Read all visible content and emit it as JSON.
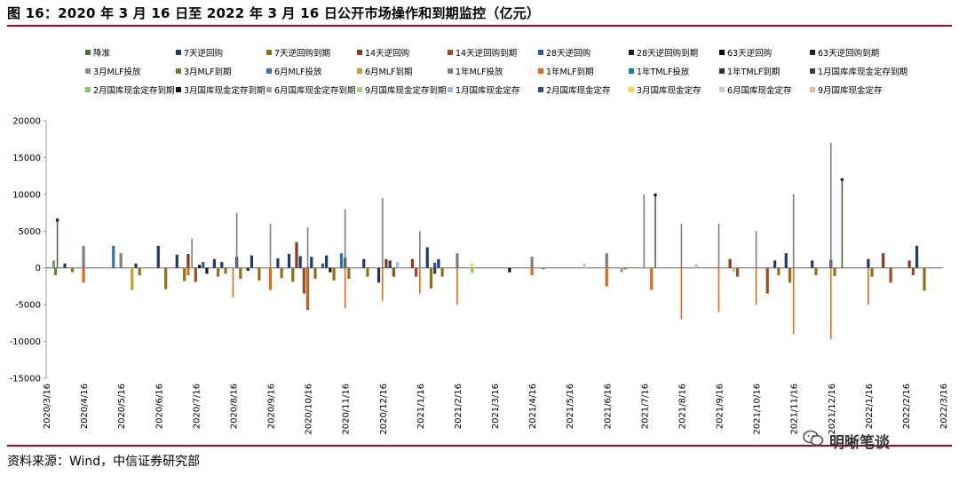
{
  "figure": {
    "title": "图 16：2020 年 3 月 16 日至 2022 年 3 月 16 日公开市场操作和到期监控（亿元）",
    "source": "资料来源：Wind，中信证券研究部",
    "watermark": "明晰笔谈",
    "watermark_icon": "wechat-icon",
    "accent_color": "#b3001b"
  },
  "chart_data": {
    "type": "bar",
    "title": "2020 年 3 月 16 日至 2022 年 3 月 16 日公开市场操作和到期监控（亿元）",
    "xlabel": "",
    "ylabel": "亿元",
    "ylim": [
      -15000,
      20000
    ],
    "yticks": [
      20000,
      15000,
      10000,
      5000,
      0,
      -5000,
      -10000,
      -15000
    ],
    "grid": false,
    "legend_position": "top",
    "x_tick_labels": [
      "2020/3/16",
      "2020/4/16",
      "2020/5/16",
      "2020/6/16",
      "2020/7/16",
      "2020/8/16",
      "2020/9/16",
      "2020/10/16",
      "2020/11/16",
      "2020/12/16",
      "2021/1/16",
      "2021/2/16",
      "2021/3/16",
      "2021/4/16",
      "2021/5/16",
      "2021/6/16",
      "2021/7/16",
      "2021/8/16",
      "2021/9/16",
      "2021/10/16",
      "2021/11/16",
      "2021/12/16",
      "2022/1/16",
      "2022/2/16",
      "2022/3/16"
    ],
    "series": [
      {
        "name": "降准",
        "color": "#4a6b3a",
        "points": [
          [
            0.3,
            6500
          ],
          [
            16.3,
            9900
          ],
          [
            21.3,
            12000
          ]
        ]
      },
      {
        "name": "7天逆回购",
        "color": "#1f3a6e",
        "points": [
          [
            0.5,
            600
          ],
          [
            2.4,
            600
          ],
          [
            3.0,
            3000
          ],
          [
            3.5,
            1800
          ],
          [
            4.5,
            1200
          ],
          [
            4.7,
            800
          ],
          [
            5.1,
            1500
          ],
          [
            5.5,
            1700
          ],
          [
            6.2,
            1300
          ],
          [
            6.5,
            1900
          ],
          [
            6.8,
            1600
          ],
          [
            7.1,
            1500
          ],
          [
            7.5,
            1700
          ],
          [
            8.0,
            1400
          ],
          [
            8.5,
            1200
          ],
          [
            9.2,
            1000
          ],
          [
            10.2,
            2800
          ],
          [
            10.5,
            1200
          ],
          [
            19.5,
            1000
          ],
          [
            19.8,
            2000
          ],
          [
            20.5,
            1000
          ],
          [
            21.0,
            1100
          ],
          [
            22.0,
            1200
          ],
          [
            23.3,
            3000
          ]
        ]
      },
      {
        "name": "7天逆回购到期",
        "color": "#8f7312",
        "points": [
          [
            0.7,
            -600
          ],
          [
            2.5,
            -1000
          ],
          [
            3.2,
            -2900
          ],
          [
            3.7,
            -1800
          ],
          [
            4.6,
            -1200
          ],
          [
            4.8,
            -800
          ],
          [
            5.2,
            -1500
          ],
          [
            5.7,
            -1700
          ],
          [
            6.3,
            -1400
          ],
          [
            6.6,
            -1900
          ],
          [
            6.9,
            -1600
          ],
          [
            7.2,
            -1500
          ],
          [
            7.7,
            -1700
          ],
          [
            8.1,
            -1500
          ],
          [
            8.6,
            -1200
          ],
          [
            9.3,
            -1000
          ],
          [
            10.3,
            -2800
          ],
          [
            10.6,
            -1200
          ],
          [
            13.3,
            -200
          ],
          [
            15.5,
            -200
          ],
          [
            19.6,
            -1000
          ],
          [
            19.9,
            -2000
          ],
          [
            20.6,
            -1000
          ],
          [
            21.1,
            -1100
          ],
          [
            22.1,
            -1200
          ],
          [
            23.5,
            -3100
          ]
        ]
      },
      {
        "name": "14天逆回购",
        "color": "#8a3a1a",
        "points": [
          [
            3.8,
            1900
          ],
          [
            6.7,
            3500
          ],
          [
            9.1,
            1200
          ],
          [
            9.8,
            1200
          ],
          [
            18.3,
            1200
          ],
          [
            22.4,
            2000
          ],
          [
            23.1,
            1000
          ]
        ]
      },
      {
        "name": "14天逆回购到期",
        "color": "#a04a22",
        "points": [
          [
            4.0,
            -1900
          ],
          [
            6.9,
            -3500
          ],
          [
            7.0,
            -5700
          ],
          [
            9.3,
            -1200
          ],
          [
            9.9,
            -1200
          ],
          [
            18.5,
            -1200
          ],
          [
            19.3,
            -3500
          ],
          [
            22.6,
            -2000
          ],
          [
            23.2,
            -1000
          ]
        ]
      },
      {
        "name": "28天逆回购",
        "color": "#2c5a9a",
        "points": [
          [
            4.2,
            800
          ],
          [
            7.4,
            600
          ]
        ]
      },
      {
        "name": "28天逆回购到期",
        "color": "#1a1a1a",
        "points": [
          [
            4.3,
            -800
          ],
          [
            7.6,
            -600
          ]
        ]
      },
      {
        "name": "63天逆回购",
        "color": "#000000",
        "points": [
          [
            4.1,
            400
          ]
        ]
      },
      {
        "name": "63天逆回购到期",
        "color": "#222222",
        "points": [
          [
            5.4,
            -400
          ]
        ]
      },
      {
        "name": "3月MLF投放",
        "color": "#8c8c8c",
        "points": [
          [
            0.2,
            1000
          ]
        ]
      },
      {
        "name": "3月MLF到期",
        "color": "#5a8a2e",
        "points": [
          [
            0.25,
            -1000
          ]
        ]
      },
      {
        "name": "6月MLF投放",
        "color": "#3d6fb0",
        "points": [
          [
            1.8,
            3000
          ]
        ]
      },
      {
        "name": "6月MLF到期",
        "color": "#c8a01e",
        "points": [
          [
            2.3,
            -3000
          ]
        ]
      },
      {
        "name": "1年MLF投放",
        "color": "#7f7f7f",
        "points": [
          [
            1.0,
            3000
          ],
          [
            2.0,
            2000
          ],
          [
            3.9,
            4000
          ],
          [
            5.1,
            7500
          ],
          [
            6.0,
            6000
          ],
          [
            7.0,
            5500
          ],
          [
            8.0,
            8000
          ],
          [
            9.0,
            9500
          ],
          [
            10.0,
            5000
          ],
          [
            11.0,
            2000
          ],
          [
            13.0,
            1500
          ],
          [
            15.0,
            2000
          ],
          [
            16.0,
            10000
          ],
          [
            17.0,
            6000
          ],
          [
            18.0,
            6000
          ],
          [
            19.0,
            5000
          ],
          [
            20.0,
            10000
          ],
          [
            21.0,
            17000
          ]
        ]
      },
      {
        "name": "1年MLF到期",
        "color": "#e06a1a",
        "points": [
          [
            1.0,
            -2000
          ],
          [
            3.8,
            -1000
          ],
          [
            5.0,
            -4000
          ],
          [
            6.0,
            -3000
          ],
          [
            7.0,
            -5500
          ],
          [
            8.0,
            -5500
          ],
          [
            9.0,
            -4500
          ],
          [
            10.0,
            -3500
          ],
          [
            11.0,
            -5000
          ],
          [
            13.0,
            -1000
          ],
          [
            15.0,
            -2500
          ],
          [
            16.2,
            -3000
          ],
          [
            17.0,
            -7000
          ],
          [
            18.0,
            -6000
          ],
          [
            19.0,
            -5000
          ],
          [
            20.0,
            -9000
          ],
          [
            21.0,
            -9700
          ],
          [
            22.0,
            -5000
          ]
        ]
      },
      {
        "name": "1年TMLF投放",
        "color": "#1f7ab5",
        "points": [
          [
            7.9,
            2000
          ]
        ]
      },
      {
        "name": "1年TMLF到期",
        "color": "#1a3050",
        "points": [
          [
            8.9,
            -2000
          ]
        ]
      },
      {
        "name": "1月国库库现金定存到期",
        "color": "#3a3a3a",
        "points": [
          [
            10.4,
            -800
          ]
        ]
      },
      {
        "name": "2月国库现金定存到期",
        "color": "#8fc06a",
        "points": [
          [
            11.4,
            -700
          ]
        ]
      },
      {
        "name": "3月国库现金定存到期",
        "color": "#111111",
        "points": [
          [
            12.4,
            -600
          ]
        ]
      },
      {
        "name": "6月国库现金定存到期",
        "color": "#a0a0a0",
        "points": [
          [
            15.4,
            -600
          ]
        ]
      },
      {
        "name": "9月国库现金定存到期",
        "color": "#a8d08a",
        "points": [
          [
            18.4,
            -500
          ]
        ]
      },
      {
        "name": "1月国库现金定存",
        "color": "#9db8df",
        "points": [
          [
            9.4,
            800
          ]
        ]
      },
      {
        "name": "2月国库现金定存",
        "color": "#2d4f8a",
        "points": [
          [
            10.4,
            700
          ]
        ]
      },
      {
        "name": "3月国库现金定存",
        "color": "#ffd24a",
        "points": [
          [
            11.4,
            600
          ]
        ]
      },
      {
        "name": "6月国库现金定存",
        "color": "#c9c9c9",
        "points": [
          [
            14.4,
            600
          ]
        ]
      },
      {
        "name": "9月国库现金定存",
        "color": "#f2b49a",
        "points": [
          [
            17.4,
            500
          ]
        ]
      }
    ]
  }
}
